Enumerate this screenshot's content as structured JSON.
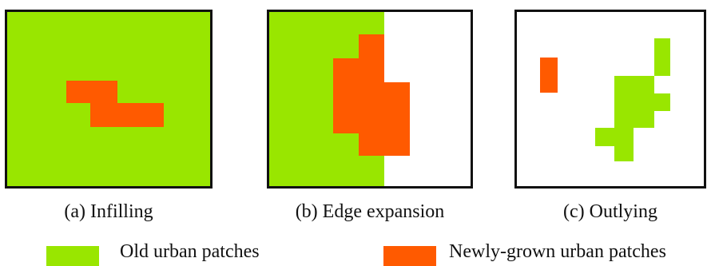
{
  "colors": {
    "old": "#99e600",
    "new": "#ff5a00",
    "background": "#ffffff",
    "border": "#111111"
  },
  "panels": [
    {
      "caption": "(a) Infilling"
    },
    {
      "caption": "(b) Edge expansion"
    },
    {
      "caption": "(c) Outlying"
    }
  ],
  "legend": {
    "old_label": "Old urban patches",
    "new_label": "Newly-grown urban patches"
  }
}
